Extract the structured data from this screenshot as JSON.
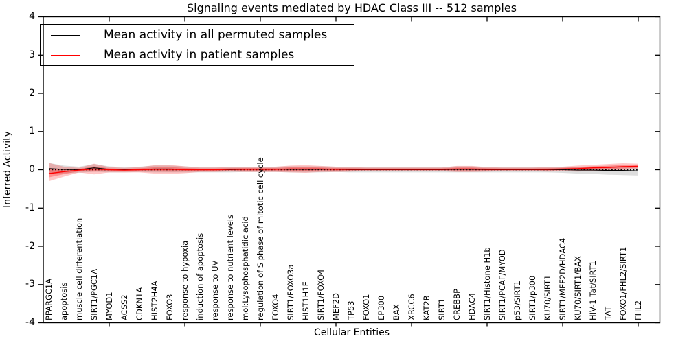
{
  "chart_data": {
    "type": "line",
    "title": "Signaling events mediated by HDAC Class III -- 512 samples",
    "xlabel": "Cellular Entities",
    "ylabel": "Inferred Activity",
    "ylim": [
      -4,
      4
    ],
    "yticks": [
      -4,
      -3,
      -2,
      -1,
      0,
      1,
      2,
      3,
      4
    ],
    "xtick_frame_positions": [
      5,
      10,
      15,
      20,
      25,
      30,
      35,
      40
    ],
    "grid": false,
    "legend_position": "upper left",
    "zero_line": {
      "value": 0,
      "style": "dotted",
      "color": "#000000"
    },
    "categories": [
      "PPARGC1A",
      "apoptosis",
      "muscle cell differentiation",
      "SIRT1/PGC1A",
      "MYOD1",
      "ACSS2",
      "CDKN1A",
      "HIST2H4A",
      "FOXO3",
      "response to hypoxia",
      "induction of apoptosis",
      "response to UV",
      "response to nutrient levels",
      "mol:Lysophosphatidic acid",
      "regulation of S phase of mitotic cell cycle",
      "FOXO4",
      "SIRT1/FOXO3a",
      "HIST1H1E",
      "SIRT1/FOXO4",
      "MEF2D",
      "TP53",
      "FOXO1",
      "EP300",
      "BAX",
      "XRCC6",
      "KAT2B",
      "SIRT1",
      "CREBBP",
      "HDAC4",
      "SIRT1/Histone H1b",
      "SIRT1/PCAF/MYOD",
      "p53/SIRT1",
      "SIRT1/p300",
      "KU70/SIRT1",
      "SIRT1/MEF2D/HDAC4",
      "KU70/SIRT1/BAX",
      "HIV-1 Tat/SIRT1",
      "TAT",
      "FOXO1/FHL2/SIRT1",
      "FHL2"
    ],
    "series": [
      {
        "name": "Mean activity in all permuted samples",
        "color": "#000000",
        "values": [
          0.03,
          0.01,
          0.0,
          0.05,
          0.01,
          0.0,
          0.01,
          0.02,
          0.02,
          0.01,
          0.0,
          0.0,
          0.0,
          0.01,
          0.01,
          0.01,
          0.01,
          0.01,
          0.01,
          0.01,
          0.0,
          0.0,
          0.0,
          0.0,
          0.0,
          0.0,
          0.0,
          0.01,
          0.01,
          0.0,
          0.0,
          0.0,
          0.0,
          0.0,
          0.0,
          -0.01,
          -0.01,
          -0.02,
          -0.02,
          -0.03
        ]
      },
      {
        "name": "Mean activity in patient samples",
        "color": "#ff0000",
        "values": [
          -0.1,
          -0.05,
          -0.01,
          0.02,
          0.0,
          -0.01,
          0.0,
          0.01,
          0.01,
          0.0,
          0.0,
          0.0,
          0.01,
          0.01,
          0.01,
          0.01,
          0.02,
          0.02,
          0.02,
          0.01,
          0.01,
          0.01,
          0.01,
          0.01,
          0.01,
          0.01,
          0.01,
          0.02,
          0.02,
          0.01,
          0.01,
          0.01,
          0.01,
          0.01,
          0.02,
          0.03,
          0.05,
          0.06,
          0.08,
          0.09
        ]
      }
    ],
    "bands": [
      {
        "series": "Mean activity in all permuted samples",
        "color": "#000000",
        "opacity": 0.13,
        "upper": [
          0.18,
          0.11,
          0.08,
          0.15,
          0.09,
          0.07,
          0.08,
          0.11,
          0.11,
          0.09,
          0.07,
          0.07,
          0.07,
          0.08,
          0.08,
          0.08,
          0.09,
          0.09,
          0.09,
          0.08,
          0.07,
          0.07,
          0.07,
          0.07,
          0.07,
          0.07,
          0.07,
          0.09,
          0.09,
          0.07,
          0.07,
          0.07,
          0.07,
          0.07,
          0.08,
          0.08,
          0.09,
          0.09,
          0.1,
          0.09
        ],
        "lower": [
          -0.12,
          -0.09,
          -0.08,
          -0.05,
          -0.07,
          -0.07,
          -0.06,
          -0.07,
          -0.07,
          -0.07,
          -0.07,
          -0.07,
          -0.07,
          -0.06,
          -0.06,
          -0.06,
          -0.07,
          -0.07,
          -0.07,
          -0.06,
          -0.07,
          -0.07,
          -0.07,
          -0.07,
          -0.07,
          -0.07,
          -0.07,
          -0.07,
          -0.07,
          -0.07,
          -0.07,
          -0.07,
          -0.07,
          -0.07,
          -0.08,
          -0.1,
          -0.11,
          -0.13,
          -0.14,
          -0.15
        ]
      },
      {
        "series": "Mean activity in patient samples",
        "color": "#ff0000",
        "opacity": 0.25,
        "upper": [
          0.18,
          0.08,
          0.05,
          0.16,
          0.07,
          0.05,
          0.07,
          0.12,
          0.13,
          0.09,
          0.06,
          0.06,
          0.07,
          0.08,
          0.08,
          0.08,
          0.11,
          0.12,
          0.1,
          0.08,
          0.07,
          0.06,
          0.06,
          0.06,
          0.06,
          0.06,
          0.06,
          0.1,
          0.1,
          0.07,
          0.06,
          0.06,
          0.06,
          0.07,
          0.08,
          0.11,
          0.13,
          0.15,
          0.17,
          0.16
        ],
        "lower": [
          -0.3,
          -0.18,
          -0.07,
          -0.12,
          -0.07,
          -0.07,
          -0.07,
          -0.1,
          -0.11,
          -0.09,
          -0.06,
          -0.06,
          -0.05,
          -0.06,
          -0.06,
          -0.06,
          -0.07,
          -0.08,
          -0.06,
          -0.06,
          -0.05,
          -0.04,
          -0.04,
          -0.04,
          -0.04,
          -0.04,
          -0.04,
          -0.06,
          -0.06,
          -0.05,
          -0.04,
          -0.04,
          -0.04,
          -0.05,
          -0.04,
          -0.05,
          -0.03,
          -0.03,
          -0.01,
          0.02
        ]
      }
    ]
  }
}
